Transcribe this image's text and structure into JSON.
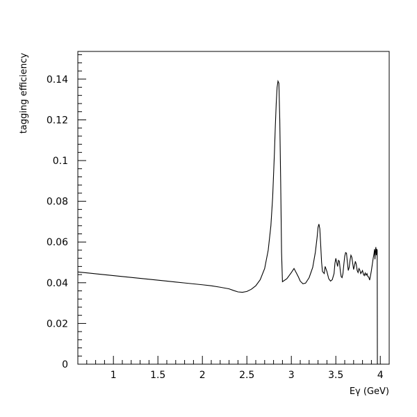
{
  "chart_data": {
    "type": "line",
    "title": "",
    "xlabel": "Eγ (GeV)",
    "ylabel": "tagging efficiency",
    "xlim": [
      0.6,
      4.1
    ],
    "ylim": [
      0,
      0.1536
    ],
    "grid": false,
    "legend": "none",
    "x_ticks": [
      1,
      1.5,
      2,
      2.5,
      3,
      3.5,
      4
    ],
    "x_tick_labels": [
      "1",
      "1.5",
      "2",
      "2.5",
      "3",
      "3.5",
      "4"
    ],
    "y_ticks": [
      0,
      0.02,
      0.04,
      0.06,
      0.08,
      0.1,
      0.12,
      0.14
    ],
    "y_tick_labels": [
      "0",
      "0.02",
      "0.04",
      "0.06",
      "0.08",
      "0.1",
      "0.12",
      "0.14"
    ],
    "line_color": "#000000",
    "series": [
      {
        "x": [
          0.6,
          0.8,
          1.0,
          1.2,
          1.4,
          1.6,
          1.8,
          2.0,
          2.1,
          2.2,
          2.3,
          2.35,
          2.4,
          2.45,
          2.5,
          2.55,
          2.6,
          2.65,
          2.7,
          2.74,
          2.77,
          2.79,
          2.81,
          2.82,
          2.83,
          2.84,
          2.85,
          2.86,
          2.87,
          2.88,
          2.89,
          2.9,
          2.95,
          3.0,
          3.03,
          3.06,
          3.08,
          3.1,
          3.13,
          3.16,
          3.2,
          3.24,
          3.27,
          3.29,
          3.3,
          3.31,
          3.32,
          3.33,
          3.34,
          3.35,
          3.37,
          3.38,
          3.4,
          3.42,
          3.44,
          3.46,
          3.48,
          3.49,
          3.5,
          3.51,
          3.52,
          3.53,
          3.54,
          3.55,
          3.56,
          3.57,
          3.58,
          3.59,
          3.6,
          3.61,
          3.62,
          3.63,
          3.64,
          3.65,
          3.66,
          3.67,
          3.68,
          3.69,
          3.7,
          3.71,
          3.72,
          3.73,
          3.74,
          3.75,
          3.76,
          3.77,
          3.78,
          3.79,
          3.8,
          3.81,
          3.82,
          3.83,
          3.84,
          3.85,
          3.86,
          3.87,
          3.88,
          3.89,
          3.9,
          3.91,
          3.92,
          3.93,
          3.935,
          3.94,
          3.945,
          3.95,
          3.955,
          3.96,
          3.965,
          3.966,
          3.967
        ],
        "y": [
          0.0453,
          0.0444,
          0.0435,
          0.0426,
          0.0417,
          0.0408,
          0.0399,
          0.039,
          0.0385,
          0.0378,
          0.037,
          0.0362,
          0.0355,
          0.0353,
          0.0357,
          0.0368,
          0.0385,
          0.0415,
          0.047,
          0.056,
          0.068,
          0.082,
          0.104,
          0.117,
          0.128,
          0.136,
          0.139,
          0.138,
          0.12,
          0.09,
          0.055,
          0.0405,
          0.042,
          0.045,
          0.047,
          0.0445,
          0.0428,
          0.0408,
          0.0395,
          0.0398,
          0.0425,
          0.0475,
          0.055,
          0.0625,
          0.0672,
          0.0688,
          0.0665,
          0.0585,
          0.05,
          0.0455,
          0.0445,
          0.048,
          0.0455,
          0.042,
          0.0408,
          0.0415,
          0.0445,
          0.0495,
          0.052,
          0.05,
          0.048,
          0.051,
          0.0505,
          0.046,
          0.043,
          0.0425,
          0.0445,
          0.049,
          0.053,
          0.0548,
          0.0545,
          0.05,
          0.046,
          0.0475,
          0.051,
          0.0535,
          0.0525,
          0.0495,
          0.0465,
          0.0485,
          0.0505,
          0.049,
          0.046,
          0.045,
          0.047,
          0.0462,
          0.0445,
          0.0452,
          0.046,
          0.0442,
          0.0435,
          0.0448,
          0.0437,
          0.0445,
          0.043,
          0.0428,
          0.0413,
          0.0435,
          0.046,
          0.049,
          0.052,
          0.0545,
          0.0565,
          0.0515,
          0.0555,
          0.0575,
          0.0535,
          0.0565,
          0.056,
          0.03,
          0.0
        ]
      }
    ]
  }
}
